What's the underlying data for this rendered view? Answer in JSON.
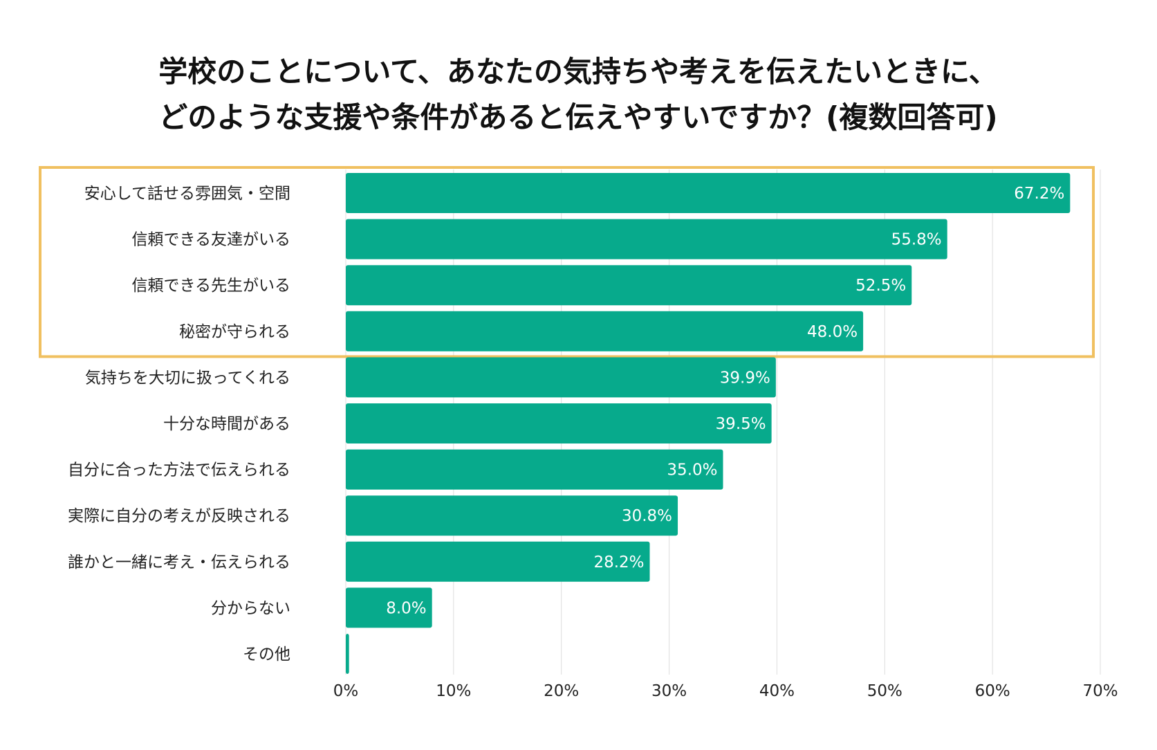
{
  "chart_data": {
    "type": "bar",
    "orientation": "horizontal",
    "title_lines": [
      "学校のことについて、あなたの気持ちや考えを伝えたいときに、",
      "どのような支援や条件があると伝えやすいですか？(複数回答可)"
    ],
    "categories": [
      "安心して話せる雰囲気・空間",
      "信頼できる友達がいる",
      "信頼できる先生がいる",
      "秘密が守られる",
      "気持ちを大切に扱ってくれる",
      "十分な時間がある",
      "自分に合った方法で伝えられる",
      "実際に自分の考えが反映される",
      "誰かと一緒に考え・伝えられる",
      "分からない",
      "その他"
    ],
    "values": [
      67.2,
      55.8,
      52.5,
      48.0,
      39.9,
      39.5,
      35.0,
      30.8,
      28.2,
      8.0,
      0.3
    ],
    "value_labels": [
      "67.2%",
      "55.8%",
      "52.5%",
      "48.0%",
      "39.9%",
      "39.5%",
      "35.0%",
      "30.8%",
      "28.2%",
      "8.0%",
      ""
    ],
    "xlim": [
      0,
      70
    ],
    "xticks": [
      0,
      10,
      20,
      30,
      40,
      50,
      60,
      70
    ],
    "xtick_labels": [
      "0%",
      "10%",
      "20%",
      "30%",
      "40%",
      "50%",
      "60%",
      "70%"
    ],
    "highlighted_count": 4,
    "grid": true,
    "colors": {
      "bar": "#07aa8c",
      "highlight_box": "#f0c060",
      "grid": "#dddddd",
      "value_text": "#ffffff"
    }
  }
}
